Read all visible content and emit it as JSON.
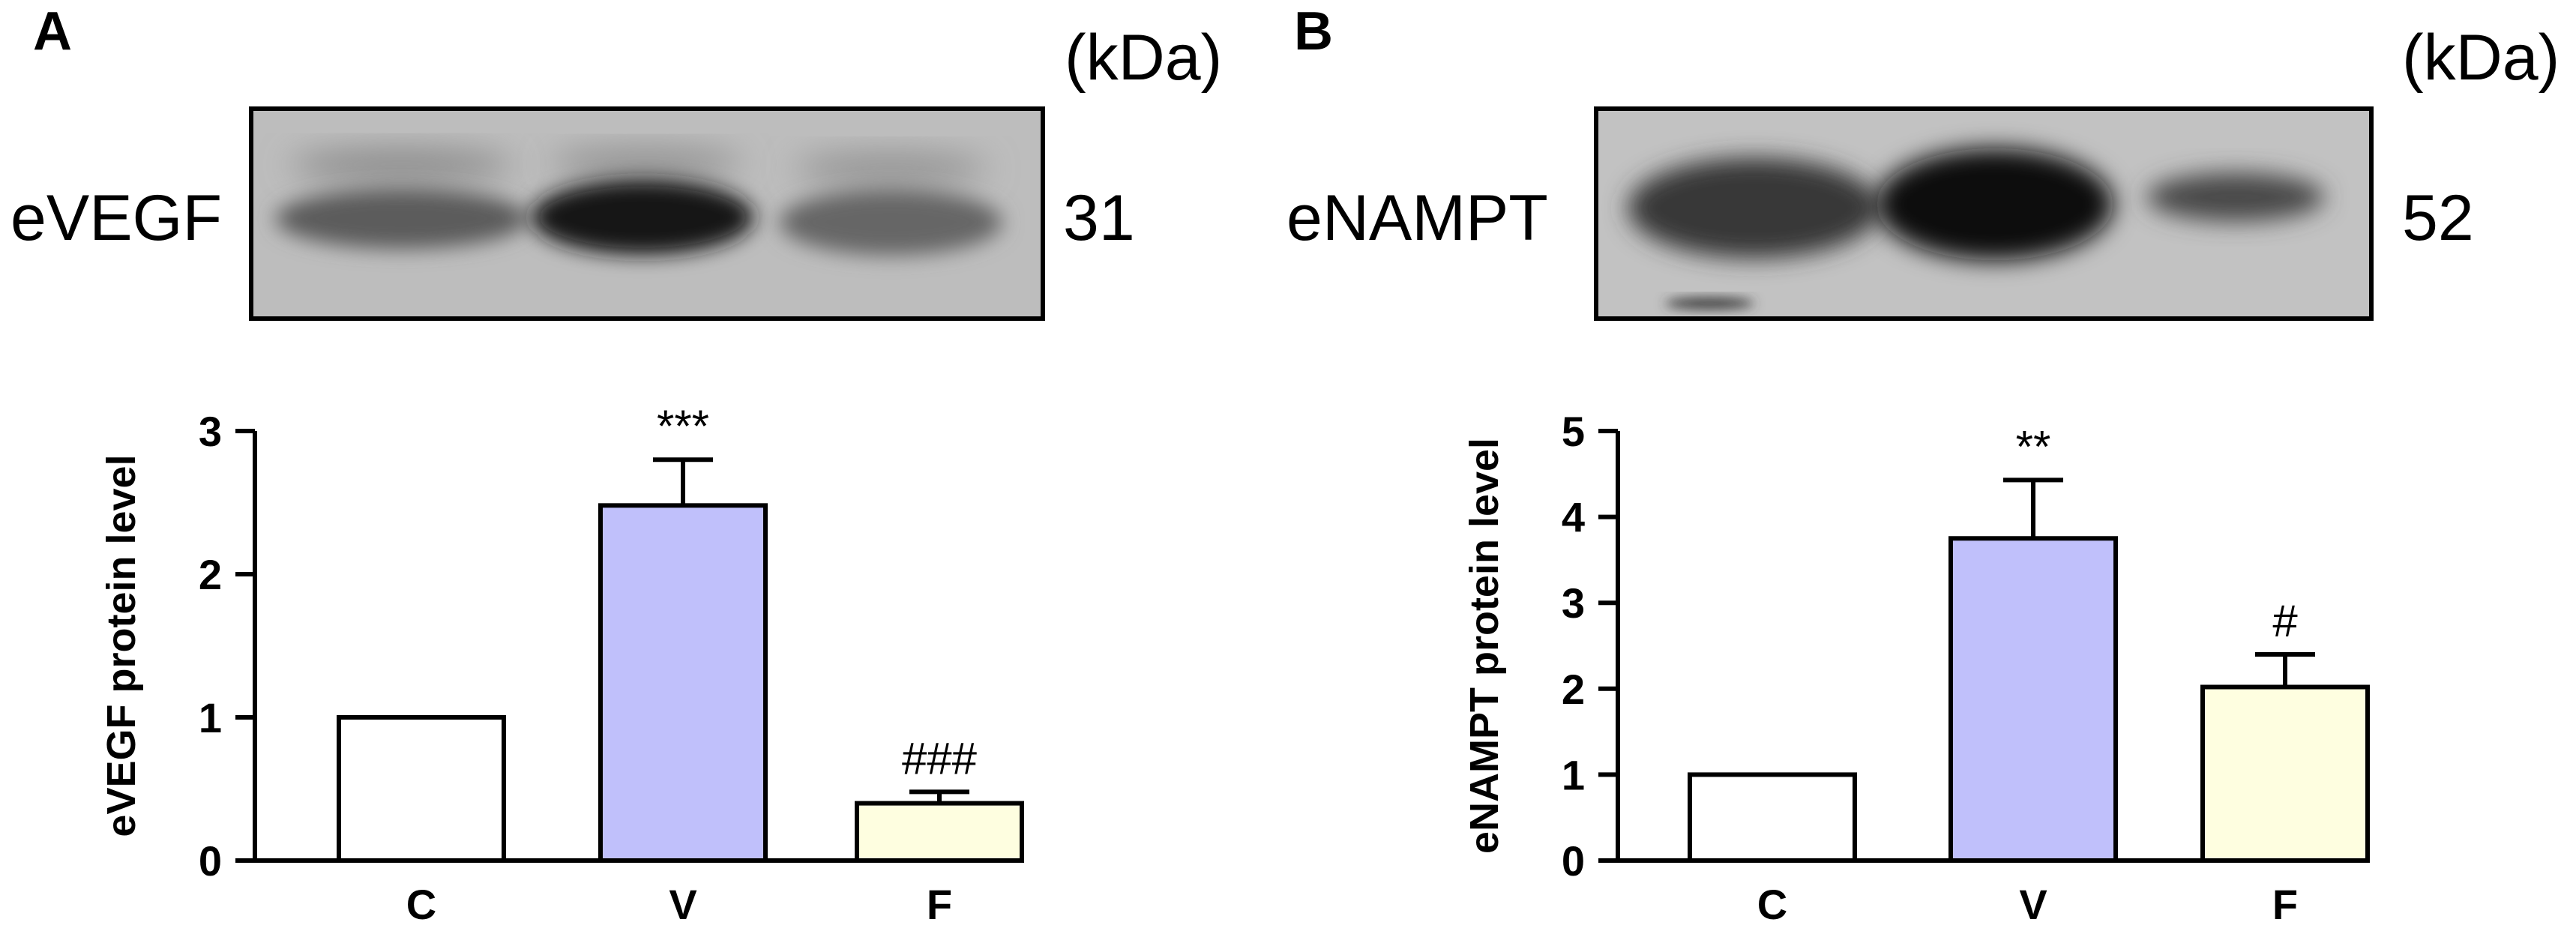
{
  "panels": [
    {
      "letter": "A",
      "kda_label": "(kDa)",
      "protein_label": "eVEGF",
      "molecular_weight": "31",
      "chart_data": {
        "type": "bar",
        "categories": [
          "C",
          "V",
          "F"
        ],
        "values": [
          1.0,
          2.48,
          0.4
        ],
        "errors": [
          0,
          0.32,
          0.08
        ],
        "annotations": [
          "",
          "***",
          "###"
        ],
        "ylabel": "eVEGF protein level",
        "ylim": [
          0,
          3
        ],
        "yticks": [
          0,
          1,
          2,
          3
        ],
        "colors": [
          "#ffffff",
          "#c0c0fb",
          "#fefee0"
        ]
      }
    },
    {
      "letter": "B",
      "kda_label": "(kDa)",
      "protein_label": "eNAMPT",
      "molecular_weight": "52",
      "chart_data": {
        "type": "bar",
        "categories": [
          "C",
          "V",
          "F"
        ],
        "values": [
          1.0,
          3.75,
          2.02
        ],
        "errors": [
          0,
          0.68,
          0.38
        ],
        "annotations": [
          "",
          "**",
          "#"
        ],
        "ylabel": "eNAMPT protein level",
        "ylim": [
          0,
          5
        ],
        "yticks": [
          0,
          1,
          2,
          3,
          4,
          5
        ],
        "colors": [
          "#ffffff",
          "#c0c0fb",
          "#fefee0"
        ]
      }
    }
  ]
}
